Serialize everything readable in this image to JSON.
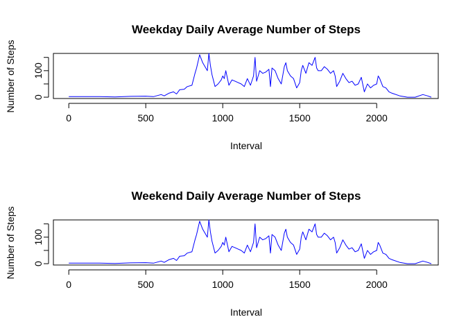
{
  "chart_data": [
    {
      "type": "line",
      "title": "Weekday Daily Average Number of Steps",
      "xlabel": "Interval",
      "ylabel": "Number of Steps",
      "xlim": [
        -100,
        2400
      ],
      "ylim": [
        -5,
        165
      ],
      "x_ticks": [
        0,
        500,
        1000,
        1500,
        2000
      ],
      "y_ticks": [
        0,
        100
      ],
      "grid": false,
      "legend": "none",
      "series": [
        {
          "color": "#0000ff",
          "x": [
            0,
            100,
            200,
            300,
            400,
            500,
            550,
            600,
            620,
            650,
            680,
            700,
            720,
            750,
            770,
            800,
            820,
            830,
            850,
            870,
            900,
            910,
            920,
            930,
            950,
            970,
            990,
            1000,
            1010,
            1020,
            1040,
            1060,
            1080,
            1100,
            1120,
            1140,
            1160,
            1180,
            1200,
            1210,
            1220,
            1240,
            1260,
            1280,
            1300,
            1310,
            1320,
            1340,
            1360,
            1380,
            1400,
            1410,
            1420,
            1440,
            1460,
            1480,
            1500,
            1510,
            1520,
            1540,
            1560,
            1580,
            1600,
            1610,
            1620,
            1640,
            1660,
            1680,
            1700,
            1720,
            1730,
            1740,
            1760,
            1780,
            1800,
            1820,
            1840,
            1860,
            1880,
            1900,
            1920,
            1940,
            1960,
            1980,
            2000,
            2010,
            2020,
            2040,
            2060,
            2080,
            2100,
            2150,
            2200,
            2250,
            2300,
            2330,
            2355
          ],
          "y": [
            2,
            2,
            2,
            1,
            3,
            4,
            2,
            10,
            5,
            15,
            20,
            12,
            28,
            30,
            40,
            45,
            90,
            110,
            160,
            130,
            100,
            165,
            120,
            85,
            40,
            50,
            65,
            80,
            70,
            100,
            45,
            65,
            60,
            55,
            50,
            40,
            70,
            45,
            80,
            150,
            60,
            100,
            90,
            95,
            105,
            40,
            110,
            100,
            70,
            50,
            115,
            130,
            100,
            80,
            70,
            35,
            55,
            100,
            120,
            90,
            130,
            120,
            150,
            110,
            100,
            100,
            115,
            105,
            90,
            100,
            80,
            40,
            60,
            90,
            70,
            55,
            60,
            45,
            50,
            75,
            20,
            50,
            35,
            45,
            50,
            80,
            70,
            40,
            35,
            20,
            15,
            5,
            0,
            0,
            10,
            5,
            0
          ],
          "values": [
            2,
            2,
            2,
            1,
            3,
            4,
            2,
            10,
            5,
            15,
            20,
            12,
            28,
            30,
            40,
            45,
            90,
            110,
            160,
            130,
            100,
            165,
            120,
            85,
            40,
            50,
            65,
            80,
            70,
            100,
            45,
            65,
            60,
            55,
            50,
            40,
            70,
            45,
            80,
            150,
            60,
            100,
            90,
            95,
            105,
            40,
            110,
            100,
            70,
            50,
            115,
            130,
            100,
            80,
            70,
            35,
            55,
            100,
            120,
            90,
            130,
            120,
            150,
            110,
            100,
            100,
            115,
            105,
            90,
            100,
            80,
            40,
            60,
            90,
            70,
            55,
            60,
            45,
            50,
            75,
            20,
            50,
            35,
            45,
            50,
            80,
            70,
            40,
            35,
            20,
            15,
            5,
            0,
            0,
            10,
            5,
            0
          ]
        }
      ]
    },
    {
      "type": "line",
      "title": "Weekend Daily Average Number of Steps",
      "xlabel": "Interval",
      "ylabel": "Number of Steps",
      "xlim": [
        -100,
        2400
      ],
      "ylim": [
        -5,
        165
      ],
      "x_ticks": [
        0,
        500,
        1000,
        1500,
        2000
      ],
      "y_ticks": [
        0,
        100
      ],
      "grid": false,
      "legend": "none",
      "series": [
        {
          "color": "#0000ff",
          "x": [
            0,
            100,
            200,
            300,
            400,
            500,
            550,
            600,
            620,
            650,
            680,
            700,
            720,
            750,
            770,
            800,
            820,
            830,
            850,
            870,
            900,
            910,
            920,
            930,
            950,
            970,
            990,
            1000,
            1010,
            1020,
            1040,
            1060,
            1080,
            1100,
            1120,
            1140,
            1160,
            1180,
            1200,
            1210,
            1220,
            1240,
            1260,
            1280,
            1300,
            1310,
            1320,
            1340,
            1360,
            1380,
            1400,
            1410,
            1420,
            1440,
            1460,
            1480,
            1500,
            1510,
            1520,
            1540,
            1560,
            1580,
            1600,
            1610,
            1620,
            1640,
            1660,
            1680,
            1700,
            1720,
            1730,
            1740,
            1760,
            1780,
            1800,
            1820,
            1840,
            1860,
            1880,
            1900,
            1920,
            1940,
            1960,
            1980,
            2000,
            2010,
            2020,
            2040,
            2060,
            2080,
            2100,
            2150,
            2200,
            2250,
            2300,
            2330,
            2355
          ],
          "y": [
            2,
            2,
            2,
            1,
            3,
            4,
            2,
            10,
            5,
            15,
            20,
            12,
            28,
            30,
            40,
            45,
            90,
            110,
            160,
            130,
            100,
            165,
            120,
            85,
            40,
            50,
            65,
            80,
            70,
            100,
            45,
            65,
            60,
            55,
            50,
            40,
            70,
            45,
            80,
            150,
            60,
            100,
            90,
            95,
            105,
            40,
            110,
            100,
            70,
            50,
            115,
            130,
            100,
            80,
            70,
            35,
            55,
            100,
            120,
            90,
            130,
            120,
            150,
            110,
            100,
            100,
            115,
            105,
            90,
            100,
            80,
            40,
            60,
            90,
            70,
            55,
            60,
            45,
            50,
            75,
            20,
            50,
            35,
            45,
            50,
            80,
            70,
            40,
            35,
            20,
            15,
            5,
            0,
            0,
            10,
            5,
            0
          ],
          "values": [
            2,
            2,
            2,
            1,
            3,
            4,
            2,
            10,
            5,
            15,
            20,
            12,
            28,
            30,
            40,
            45,
            90,
            110,
            160,
            130,
            100,
            165,
            120,
            85,
            40,
            50,
            65,
            80,
            70,
            100,
            45,
            65,
            60,
            55,
            50,
            40,
            70,
            45,
            80,
            150,
            60,
            100,
            90,
            95,
            105,
            40,
            110,
            100,
            70,
            50,
            115,
            130,
            100,
            80,
            70,
            35,
            55,
            100,
            120,
            90,
            130,
            120,
            150,
            110,
            100,
            100,
            115,
            105,
            90,
            100,
            80,
            40,
            60,
            90,
            70,
            55,
            60,
            45,
            50,
            75,
            20,
            50,
            35,
            45,
            50,
            80,
            70,
            40,
            35,
            20,
            15,
            5,
            0,
            0,
            10,
            5,
            0
          ]
        }
      ]
    }
  ]
}
